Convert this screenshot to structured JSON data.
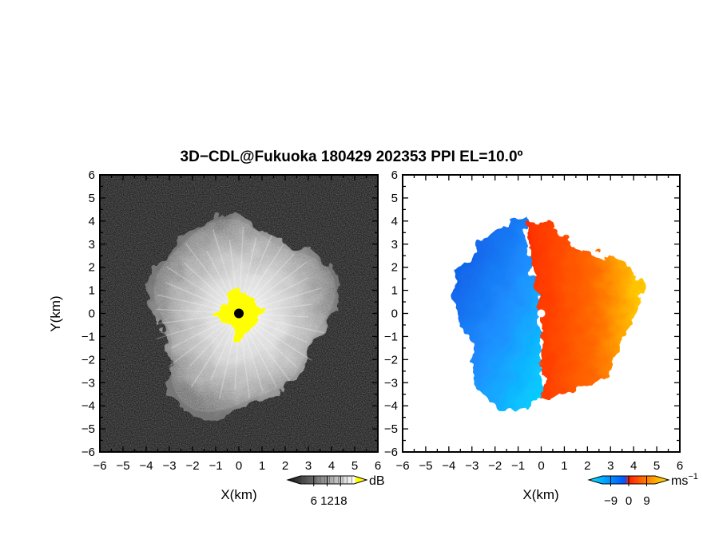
{
  "figure": {
    "title": "3D−CDL@Fukuoka 180429 202353 PPI EL=10.0º"
  },
  "chart_data": [
    {
      "type": "heatmap",
      "panel": "reflectivity",
      "xlabel": "X(km)",
      "ylabel": "Y(km)",
      "xlim": [
        -6,
        6
      ],
      "ylim": [
        -6,
        6
      ],
      "xticks": [
        "−6",
        "−5",
        "−4",
        "−3",
        "−2",
        "−1",
        "0",
        "1",
        "2",
        "3",
        "4",
        "5",
        "6"
      ],
      "yticks": [
        "6",
        "5",
        "4",
        "3",
        "2",
        "1",
        "0",
        "−1",
        "−2",
        "−3",
        "−4",
        "−5",
        "−6"
      ],
      "colorbar": {
        "ticks": [
          "6",
          "12",
          "18"
        ],
        "unit": "dB",
        "colors": [
          "#111111",
          "#ffffff",
          "#ffff00"
        ]
      },
      "echo_radius_km": 4.0,
      "strong_core_radius_km": 0.9
    },
    {
      "type": "heatmap",
      "panel": "doppler_velocity",
      "xlabel": "X(km)",
      "ylabel": "",
      "xlim": [
        -6,
        6
      ],
      "ylim": [
        -6,
        6
      ],
      "xticks": [
        "−6",
        "−5",
        "−4",
        "−3",
        "−2",
        "−1",
        "0",
        "1",
        "2",
        "3",
        "4",
        "5",
        "6"
      ],
      "yticks": [
        "6",
        "5",
        "4",
        "3",
        "2",
        "1",
        "0",
        "−1",
        "−2",
        "−3",
        "−4",
        "−5",
        "−6"
      ],
      "colorbar": {
        "ticks": [
          "−9",
          "0",
          "9"
        ],
        "unit": "ms",
        "unit_exponent": "−1",
        "colors": [
          "#00e5ff",
          "#0055ff",
          "#ff2000",
          "#ffee00"
        ]
      },
      "echo_radius_km": 3.9
    }
  ]
}
